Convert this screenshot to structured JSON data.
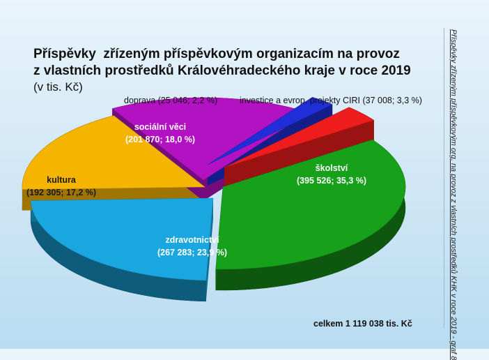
{
  "chart_data": {
    "type": "pie",
    "title_lines": [
      "Příspěvky  zřízeným příspěvkovým organizacím na provoz",
      "z vlastních prostředků Královéhradeckého kraje v roce 2019"
    ],
    "unit": "(v tis. Kč)",
    "side_note": "Příspěvky zřízeným příspěvkovým org. na provoz z vlastních prostředků KHK v roce 2019 - graf 8",
    "total_label": "celkem 1 119 038 tis. Kč",
    "slices": [
      {
        "name": "školství",
        "value": 395526,
        "percent": "35,3 %",
        "value_label": "395 526",
        "color": "#17a01a"
      },
      {
        "name": "zdravotnictví",
        "value": 267283,
        "percent": "23,9 %",
        "value_label": "267 283",
        "color": "#1aa7e0"
      },
      {
        "name": "kultura",
        "value": 192305,
        "percent": "17,2 %",
        "value_label": "192 305",
        "color": "#f5b400"
      },
      {
        "name": "sociální věci",
        "value": 201870,
        "percent": "18,0 %",
        "value_label": "201 870",
        "color": "#b312c2"
      },
      {
        "name": "doprava",
        "value": 25046,
        "percent": "2,2 %",
        "value_label": "25 046",
        "color": "#1f2ed6"
      },
      {
        "name": "investice a evrop. projekty CIRI",
        "value": 37008,
        "percent": "3,3 %",
        "value_label": "37 008",
        "color": "#ee1c1c"
      }
    ]
  }
}
